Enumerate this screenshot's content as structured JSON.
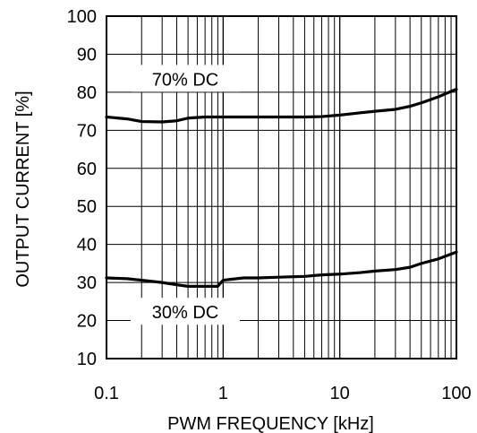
{
  "chart_data": {
    "type": "line",
    "xscale": "log",
    "xlim": [
      0.1,
      100
    ],
    "ylim": [
      10,
      100
    ],
    "xlabel": "PWM FREQUENCY [kHz]",
    "ylabel": "OUTPUT CURRENT [%]",
    "xticks": [
      0.1,
      1,
      10,
      100
    ],
    "xtick_labels": [
      "0.1",
      "1",
      "10",
      "100"
    ],
    "yticks": [
      10,
      20,
      30,
      40,
      50,
      60,
      70,
      80,
      90,
      100
    ],
    "ytick_labels": [
      "10",
      "20",
      "30",
      "40",
      "50",
      "60",
      "70",
      "80",
      "90",
      "100"
    ],
    "grid": true,
    "series": [
      {
        "name": "70% DC",
        "x": [
          0.1,
          0.15,
          0.2,
          0.3,
          0.4,
          0.5,
          0.7,
          1,
          2,
          3,
          5,
          7,
          10,
          15,
          20,
          30,
          40,
          50,
          70,
          100
        ],
        "y": [
          73.5,
          73,
          72.3,
          72.2,
          72.5,
          73.2,
          73.5,
          73.5,
          73.5,
          73.5,
          73.5,
          73.6,
          74,
          74.6,
          75,
          75.5,
          76.3,
          77.2,
          78.8,
          80.8
        ]
      },
      {
        "name": "30% DC",
        "x": [
          0.1,
          0.15,
          0.2,
          0.3,
          0.4,
          0.5,
          0.7,
          0.9,
          1,
          1.5,
          2,
          3,
          5,
          7,
          10,
          15,
          20,
          30,
          40,
          50,
          70,
          100
        ],
        "y": [
          31.2,
          31,
          30.6,
          30,
          29.4,
          29,
          29,
          29,
          30.6,
          31.2,
          31.2,
          31.4,
          31.6,
          32,
          32.2,
          32.6,
          33,
          33.4,
          34,
          35,
          36.2,
          38
        ]
      }
    ]
  }
}
